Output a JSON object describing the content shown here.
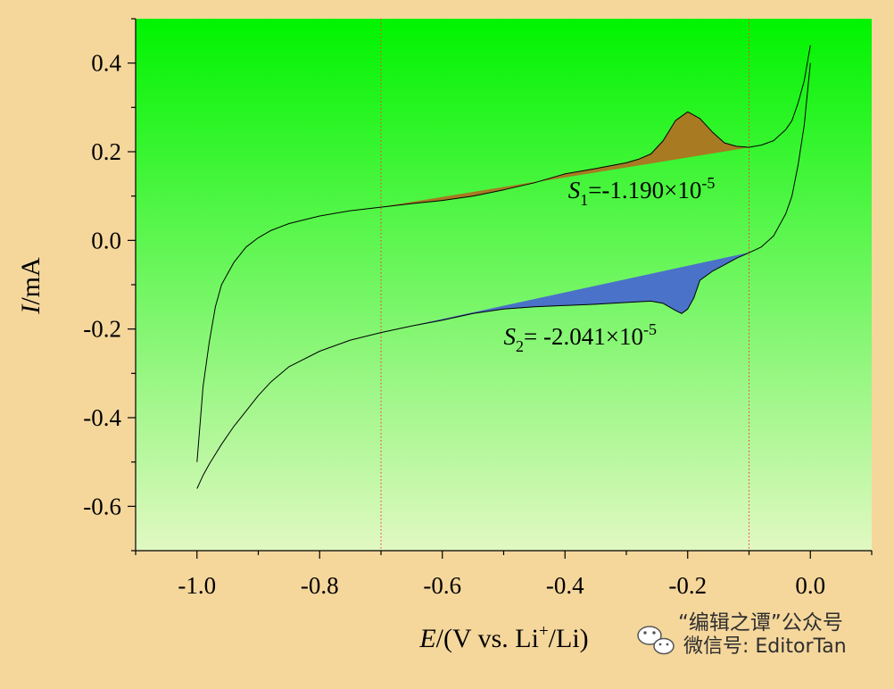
{
  "chart_data": {
    "type": "line",
    "title": "",
    "xlabel": {
      "italic": "E",
      "pre": "/(V vs. Li",
      "sup": "+",
      "post": "/Li)"
    },
    "ylabel": {
      "italic": "I",
      "rest": "/mA"
    },
    "xlim": [
      -1.1,
      0.1
    ],
    "ylim": [
      -0.7,
      0.5
    ],
    "xticks": [
      -1.0,
      -0.8,
      -0.6,
      -0.4,
      -0.2,
      0.0
    ],
    "xtick_labels": [
      "-1.0",
      "-0.8",
      "-0.6",
      "-0.4",
      "-0.2",
      "0.0"
    ],
    "yticks": [
      -0.6,
      -0.4,
      -0.2,
      0.0,
      0.2,
      0.4
    ],
    "ytick_labels": [
      "-0.6",
      "-0.4",
      "-0.2",
      "0.0",
      "0.2",
      "0.4"
    ],
    "grid": false,
    "background": {
      "gradient_top": "#00F400",
      "gradient_bottom": "#E1F8C2"
    },
    "vlines": [
      {
        "x": -0.7,
        "color": "#FF3030",
        "style": "dotted"
      },
      {
        "x": -0.1,
        "color": "#FF3030",
        "style": "dotted"
      }
    ],
    "series": [
      {
        "x": [
          0.0,
          -0.005,
          -0.01,
          -0.02,
          -0.03,
          -0.04,
          -0.06,
          -0.08,
          -0.1,
          -0.12,
          -0.14,
          -0.16,
          -0.18,
          -0.2,
          -0.22,
          -0.24,
          -0.26,
          -0.28,
          -0.3,
          -0.35,
          -0.4,
          -0.45,
          -0.5,
          -0.55,
          -0.6,
          -0.65,
          -0.7,
          -0.75,
          -0.8,
          -0.85,
          -0.88,
          -0.9,
          -0.92,
          -0.94,
          -0.96,
          -0.97,
          -0.98,
          -0.99,
          -1.0
        ],
        "y": [
          0.44,
          0.4,
          0.36,
          0.31,
          0.27,
          0.25,
          0.225,
          0.215,
          0.21,
          0.212,
          0.22,
          0.245,
          0.275,
          0.29,
          0.27,
          0.225,
          0.195,
          0.183,
          0.175,
          0.162,
          0.15,
          0.13,
          0.114,
          0.1,
          0.09,
          0.083,
          0.075,
          0.067,
          0.055,
          0.038,
          0.022,
          0.006,
          -0.015,
          -0.05,
          -0.1,
          -0.15,
          -0.23,
          -0.33,
          -0.5
        ],
        "color": "#000000"
      },
      {
        "x": [
          -1.0,
          -0.99,
          -0.98,
          -0.96,
          -0.94,
          -0.92,
          -0.9,
          -0.88,
          -0.85,
          -0.8,
          -0.75,
          -0.7,
          -0.65,
          -0.6,
          -0.55,
          -0.5,
          -0.45,
          -0.4,
          -0.35,
          -0.3,
          -0.26,
          -0.24,
          -0.22,
          -0.21,
          -0.2,
          -0.19,
          -0.18,
          -0.16,
          -0.14,
          -0.12,
          -0.1,
          -0.08,
          -0.06,
          -0.04,
          -0.03,
          -0.02,
          -0.01,
          -0.005,
          0.0
        ],
        "y": [
          -0.56,
          -0.53,
          -0.505,
          -0.46,
          -0.42,
          -0.385,
          -0.35,
          -0.32,
          -0.285,
          -0.25,
          -0.225,
          -0.208,
          -0.193,
          -0.18,
          -0.165,
          -0.155,
          -0.15,
          -0.147,
          -0.144,
          -0.14,
          -0.137,
          -0.142,
          -0.158,
          -0.165,
          -0.155,
          -0.13,
          -0.09,
          -0.07,
          -0.055,
          -0.04,
          -0.028,
          -0.015,
          0.01,
          0.06,
          0.1,
          0.17,
          0.26,
          0.33,
          0.4
        ],
        "color": "#000000"
      }
    ],
    "filled_regions": [
      {
        "color": "#A87A22",
        "from_x": -0.7,
        "to_x": -0.1,
        "label_var": "S",
        "label_sub": "1",
        "label_value": "=-1.190×10",
        "label_exp": "-5",
        "label_at": [
          -0.395,
          0.095
        ]
      },
      {
        "color": "#4A72C8",
        "from_x": -0.7,
        "to_x": -0.1,
        "label_var": "S",
        "label_sub": "2",
        "label_value": "= -2.041×10",
        "label_exp": "-5",
        "label_at": [
          -0.5,
          -0.235
        ]
      }
    ]
  },
  "watermark": {
    "line1": "“编辑之谭”公众号",
    "line2": "微信号: EditorTan"
  }
}
